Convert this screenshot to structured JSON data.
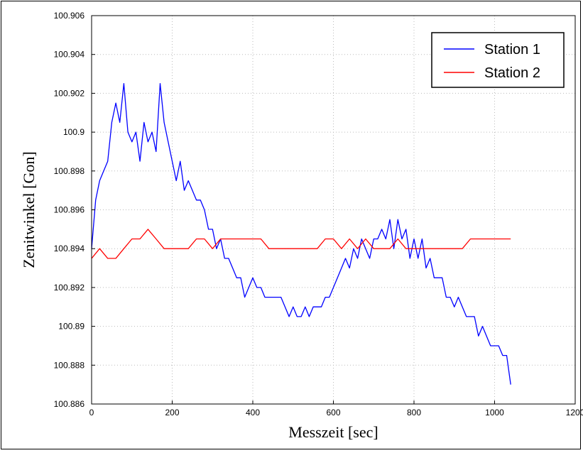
{
  "chart_data": {
    "type": "line",
    "title": "",
    "xlabel": "Messzeit [sec]",
    "ylabel": "Zenitwinkel [Gon]",
    "xlim": [
      0,
      1200
    ],
    "ylim": [
      100.886,
      100.906
    ],
    "xticks": [
      0,
      200,
      400,
      600,
      800,
      1000,
      1200
    ],
    "xtick_labels": [
      "0",
      "200",
      "400",
      "600",
      "800",
      "1000",
      "1200"
    ],
    "yticks": [
      100.886,
      100.888,
      100.89,
      100.892,
      100.894,
      100.896,
      100.898,
      100.9,
      100.902,
      100.904,
      100.906
    ],
    "ytick_labels": [
      "100.886",
      "100.888",
      "100.89",
      "100.892",
      "100.894",
      "100.896",
      "100.898",
      "100.9",
      "100.902",
      "100.904",
      "100.906"
    ],
    "grid": true,
    "legend_position": "top-right",
    "series": [
      {
        "name": "Station 1",
        "color": "#0000ff",
        "x": [
          0,
          10,
          20,
          30,
          40,
          50,
          60,
          70,
          80,
          90,
          100,
          110,
          120,
          130,
          140,
          150,
          160,
          170,
          180,
          190,
          200,
          210,
          220,
          230,
          240,
          250,
          260,
          270,
          280,
          290,
          300,
          310,
          320,
          330,
          340,
          350,
          360,
          370,
          380,
          390,
          400,
          410,
          420,
          430,
          440,
          450,
          460,
          470,
          480,
          490,
          500,
          510,
          520,
          530,
          540,
          550,
          560,
          570,
          580,
          590,
          600,
          610,
          620,
          630,
          640,
          650,
          660,
          670,
          680,
          690,
          700,
          710,
          720,
          730,
          740,
          750,
          760,
          770,
          780,
          790,
          800,
          810,
          820,
          830,
          840,
          850,
          860,
          870,
          880,
          890,
          900,
          910,
          920,
          930,
          940,
          950,
          960,
          970,
          980,
          990,
          1000,
          1010,
          1020,
          1030,
          1040
        ],
        "y": [
          100.894,
          100.8965,
          100.8975,
          100.898,
          100.8985,
          100.9005,
          100.9015,
          100.9005,
          100.9025,
          100.9,
          100.8995,
          100.9,
          100.8985,
          100.9005,
          100.8995,
          100.9,
          100.899,
          100.9025,
          100.9005,
          100.8995,
          100.8985,
          100.8975,
          100.8985,
          100.897,
          100.8975,
          100.897,
          100.8965,
          100.8965,
          100.896,
          100.895,
          100.895,
          100.894,
          100.8945,
          100.8935,
          100.8935,
          100.893,
          100.8925,
          100.8925,
          100.8915,
          100.892,
          100.8925,
          100.892,
          100.892,
          100.8915,
          100.8915,
          100.8915,
          100.8915,
          100.8915,
          100.891,
          100.8905,
          100.891,
          100.8905,
          100.8905,
          100.891,
          100.8905,
          100.891,
          100.891,
          100.891,
          100.8915,
          100.8915,
          100.892,
          100.8925,
          100.893,
          100.8935,
          100.893,
          100.894,
          100.8935,
          100.8945,
          100.894,
          100.8935,
          100.8945,
          100.8945,
          100.895,
          100.8945,
          100.8955,
          100.894,
          100.8955,
          100.8945,
          100.895,
          100.8935,
          100.8945,
          100.8935,
          100.8945,
          100.893,
          100.8935,
          100.8925,
          100.8925,
          100.8925,
          100.8915,
          100.8915,
          100.891,
          100.8915,
          100.891,
          100.8905,
          100.8905,
          100.8905,
          100.8895,
          100.89,
          100.8895,
          100.889,
          100.889,
          100.889,
          100.8885,
          100.8885,
          100.887
        ]
      },
      {
        "name": "Station 2",
        "color": "#ff0000",
        "x": [
          0,
          20,
          40,
          60,
          80,
          100,
          120,
          140,
          160,
          180,
          200,
          220,
          240,
          260,
          280,
          300,
          320,
          340,
          360,
          380,
          400,
          420,
          440,
          460,
          480,
          500,
          520,
          540,
          560,
          580,
          600,
          620,
          640,
          660,
          680,
          700,
          720,
          740,
          760,
          780,
          800,
          820,
          840,
          860,
          880,
          900,
          920,
          940,
          960,
          980,
          1000,
          1020,
          1040
        ],
        "y": [
          100.8935,
          100.894,
          100.8935,
          100.8935,
          100.894,
          100.8945,
          100.8945,
          100.895,
          100.8945,
          100.894,
          100.894,
          100.894,
          100.894,
          100.8945,
          100.8945,
          100.894,
          100.8945,
          100.8945,
          100.8945,
          100.8945,
          100.8945,
          100.8945,
          100.894,
          100.894,
          100.894,
          100.894,
          100.894,
          100.894,
          100.894,
          100.8945,
          100.8945,
          100.894,
          100.8945,
          100.894,
          100.8945,
          100.894,
          100.894,
          100.894,
          100.8945,
          100.894,
          100.894,
          100.894,
          100.894,
          100.894,
          100.894,
          100.894,
          100.894,
          100.8945,
          100.8945,
          100.8945,
          100.8945,
          100.8945,
          100.8945
        ]
      }
    ]
  }
}
